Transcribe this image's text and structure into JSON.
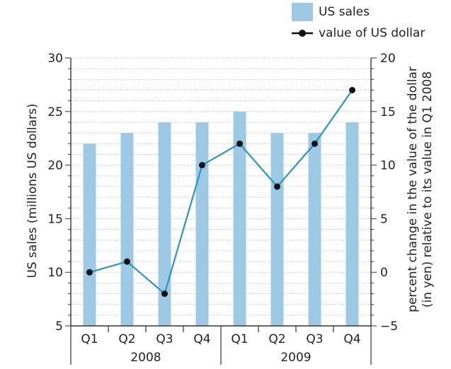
{
  "chart_data": {
    "type": "bar+line",
    "title": "",
    "categories": [
      "Q1",
      "Q2",
      "Q3",
      "Q4",
      "Q1",
      "Q2",
      "Q3",
      "Q4"
    ],
    "groups": [
      {
        "label": "2008",
        "start": 0,
        "end": 3
      },
      {
        "label": "2009",
        "start": 4,
        "end": 7
      }
    ],
    "series": [
      {
        "name": "US sales",
        "type": "bar",
        "axis": "left",
        "color": "#9ec9e4",
        "values": [
          22,
          23,
          24,
          24,
          25,
          23,
          23,
          24
        ]
      },
      {
        "name": "value of US dollar",
        "type": "line",
        "axis": "right",
        "color": "#2b95c2",
        "values": [
          0,
          1,
          -2,
          10,
          12,
          8,
          12,
          17
        ]
      }
    ],
    "ylabel_left": "US sales (millions US dollars)",
    "ylabel_right_line1": "percent change in the value of the dollar",
    "ylabel_right_line2": "(in yen) relative to its value in Q1 2008",
    "ylim_left": [
      5,
      30
    ],
    "yticks_left": [
      5,
      10,
      15,
      20,
      25,
      30
    ],
    "ylim_right": [
      -5,
      20
    ],
    "yticks_right": [
      -5,
      0,
      5,
      10,
      15,
      20
    ],
    "grid": "dotted horizontal, 1-unit steps on left axis",
    "legend": "top-right"
  }
}
